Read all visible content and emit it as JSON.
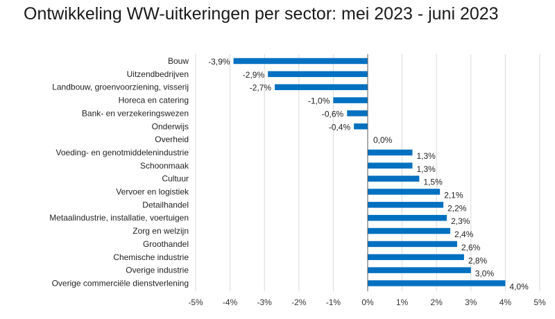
{
  "title": "Ontwikkeling WW-uitkeringen per sector: mei 2023 - juni 2023",
  "chart_data": {
    "type": "bar",
    "orientation": "horizontal",
    "title": "Ontwikkeling WW-uitkeringen per sector: mei 2023 - juni 2023",
    "xlabel": "",
    "ylabel": "",
    "xlim": [
      -5,
      5
    ],
    "grid": true,
    "bar_color": "#0070c0",
    "categories": [
      "Bouw",
      "Uitzendbedrijven",
      "Landbouw, groenvoorziening, visserij",
      "Horeca en catering",
      "Bank- en verzekeringswezen",
      "Onderwijs",
      "Overheid",
      "Voeding- en genotmiddelenindustrie",
      "Schoonmaak",
      "Cultuur",
      "Vervoer en logistiek",
      "Detailhandel",
      "Metaalindustrie, installatie, voertuigen",
      "Zorg en welzijn",
      "Groothandel",
      "Chemische industrie",
      "Overige industrie",
      "Overige commerciële dienstverlening"
    ],
    "values": [
      -3.9,
      -2.9,
      -2.7,
      -1.0,
      -0.6,
      -0.4,
      0.0,
      1.3,
      1.3,
      1.5,
      2.1,
      2.2,
      2.3,
      2.4,
      2.6,
      2.8,
      3.0,
      4.0
    ],
    "value_labels": [
      "-3,9%",
      "-2,9%",
      "-2,7%",
      "-1,0%",
      "-0,6%",
      "-0,4%",
      "0,0%",
      "1,3%",
      "1,3%",
      "1,5%",
      "2,1%",
      "2,2%",
      "2,3%",
      "2,4%",
      "2,6%",
      "2,8%",
      "3,0%",
      "4,0%"
    ],
    "ticks": [
      -5,
      -4,
      -3,
      -2,
      -1,
      0,
      1,
      2,
      3,
      4,
      5
    ],
    "tick_labels": [
      "-5%",
      "-4%",
      "-3%",
      "-2%",
      "-1%",
      "0%",
      "1%",
      "2%",
      "3%",
      "4%",
      "5%"
    ]
  }
}
